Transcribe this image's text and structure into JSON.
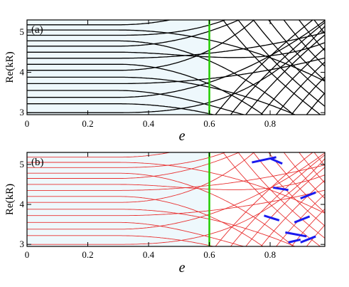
{
  "chart_data": [
    {
      "type": "line",
      "panel_label": "(a)",
      "ylabel": "Re(kR)",
      "xlabel": "e",
      "xlim": [
        0,
        0.98
      ],
      "ylim": [
        2.95,
        5.3
      ],
      "x_ticks": [
        "0",
        "0.2",
        "0.4",
        "0.6",
        "0.8"
      ],
      "y_ticks": [
        "3",
        "4",
        "5"
      ],
      "marker_line": {
        "x": 0.6,
        "color": "#22cc00"
      },
      "shaded_region": {
        "x_range": [
          0,
          0.6
        ],
        "color": "#eef8fc"
      },
      "series_color": "#000000",
      "levels_at_e0": [
        3.0,
        3.22,
        3.38,
        3.55,
        3.72,
        3.88,
        4.05,
        4.2,
        4.35,
        4.5,
        4.65,
        4.78,
        4.92,
        5.05,
        5.18
      ],
      "grid": false
    },
    {
      "type": "line",
      "panel_label": "(b)",
      "ylabel": "Re(kR)",
      "xlabel": "e",
      "xlim": [
        0,
        0.98
      ],
      "ylim": [
        2.95,
        5.3
      ],
      "x_ticks": [
        "0",
        "0.2",
        "0.4",
        "0.6",
        "0.8"
      ],
      "y_ticks": [
        "3",
        "4",
        "5"
      ],
      "marker_line": {
        "x": 0.6,
        "color": "#22cc00"
      },
      "shaded_region": {
        "x_range": [
          0,
          0.6
        ],
        "color": "#eef8fc"
      },
      "series_color": "#e83030",
      "highlight_color": "#1a1aee",
      "levels_at_e0": [
        3.0,
        3.22,
        3.38,
        3.55,
        3.72,
        3.88,
        4.05,
        4.2,
        4.35,
        4.5,
        4.65,
        4.78,
        4.92,
        5.05,
        5.18
      ],
      "grid": false
    }
  ]
}
